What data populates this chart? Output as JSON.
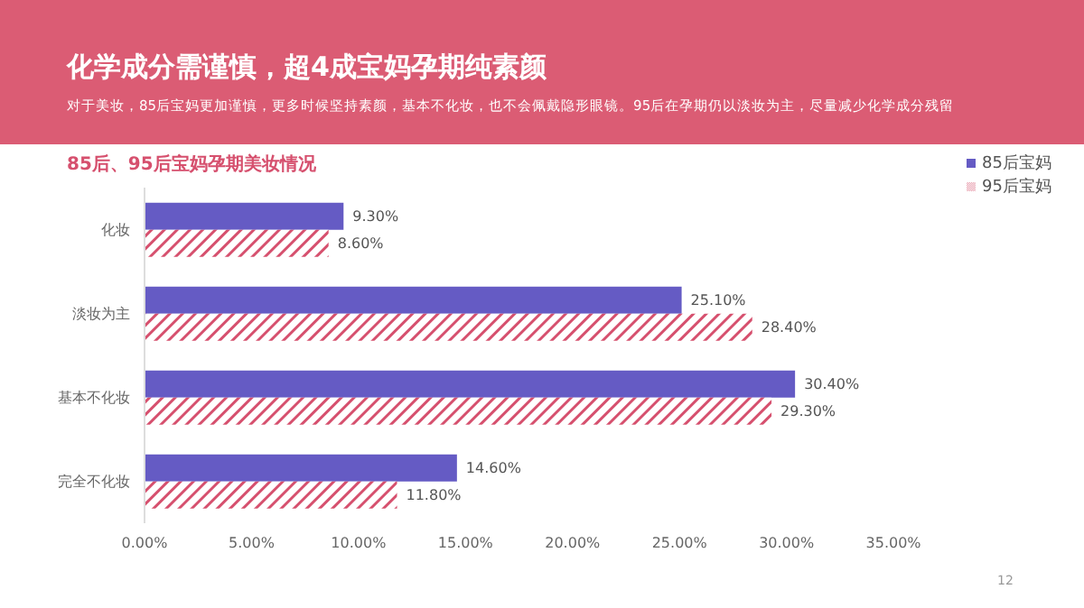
{
  "chart_data": {
    "type": "bar",
    "orientation": "horizontal",
    "title": "化学成分需谨慎，超4成宝妈孕期纯素颜",
    "subtitle": "对于美妆，85后宝妈更加谨慎，更多时候坚持素颜，基本不化妆，也不会佩戴隐形眼镜。95后在孕期仍以淡妆为主，尽量减少化学成分残留",
    "annotations": [
      "85后、95后宝妈孕期美妆情况",
      "12"
    ],
    "categories": [
      "化妆",
      "淡妆为主",
      "基本不化妆",
      "完全不化妆"
    ],
    "series": [
      {
        "name": "85后宝妈",
        "color": "#655bc4",
        "values": [
          9.3,
          25.1,
          30.4,
          14.6
        ],
        "value_labels": [
          "9.30%",
          "25.10%",
          "30.40%",
          "14.60%"
        ]
      },
      {
        "name": "95后宝妈",
        "color": "#d6506e",
        "values": [
          8.6,
          28.4,
          29.3,
          11.8
        ],
        "value_labels": [
          "8.60%",
          "28.40%",
          "29.30%",
          "11.80%"
        ]
      }
    ],
    "xlim": [
      0,
      35
    ],
    "xticks": [
      {
        "value": 0,
        "label": "0.00%"
      },
      {
        "value": 5,
        "label": "5.00%"
      },
      {
        "value": 10,
        "label": "10.00%"
      },
      {
        "value": 15,
        "label": "15.00%"
      },
      {
        "value": 20,
        "label": "20.00%"
      },
      {
        "value": 25,
        "label": "25.00%"
      },
      {
        "value": 30,
        "label": "30.00%"
      },
      {
        "value": 35,
        "label": "35.00%"
      }
    ],
    "grid": false,
    "legend": "top right"
  }
}
